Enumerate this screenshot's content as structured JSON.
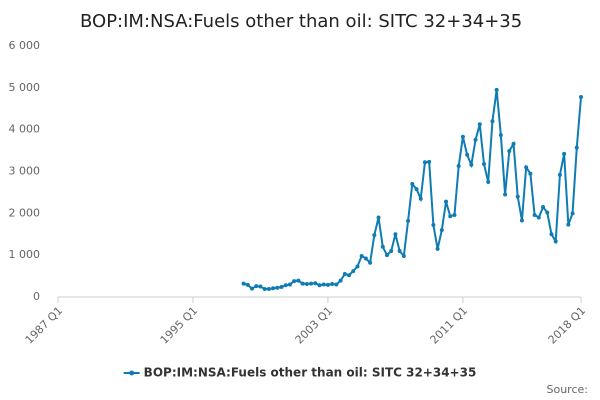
{
  "chart_data": {
    "type": "line",
    "title": "BOP:IM:NSA:Fuels other than oil: SITC 32+34+35",
    "source_label": "Source:",
    "categories": [
      "1987 Q1",
      null,
      null,
      null,
      null,
      null,
      null,
      null,
      null,
      null,
      null,
      null,
      null,
      null,
      null,
      null,
      null,
      null,
      null,
      null,
      null,
      null,
      null,
      null,
      null,
      null,
      null,
      null,
      null,
      null,
      null,
      null,
      "1995 Q1",
      null,
      null,
      null,
      null,
      null,
      null,
      null,
      null,
      null,
      null,
      null,
      null,
      null,
      null,
      null,
      null,
      null,
      null,
      null,
      null,
      null,
      null,
      null,
      null,
      null,
      null,
      null,
      null,
      null,
      null,
      null,
      "2003 Q1",
      null,
      null,
      null,
      null,
      null,
      null,
      null,
      null,
      null,
      null,
      null,
      null,
      null,
      null,
      null,
      null,
      null,
      null,
      null,
      null,
      null,
      null,
      null,
      null,
      null,
      null,
      null,
      null,
      null,
      null,
      null,
      "2011 Q1",
      null,
      null,
      null,
      null,
      null,
      null,
      null,
      null,
      null,
      null,
      null,
      null,
      null,
      null,
      null,
      null,
      null,
      null,
      null,
      null,
      null,
      null,
      null,
      null,
      null,
      null,
      null,
      "2018 Q1"
    ],
    "series": [
      {
        "name": "BOP:IM:NSA:Fuels other than oil: SITC 32+34+35",
        "color": "#0f7cb3",
        "values": [
          null,
          null,
          null,
          null,
          null,
          null,
          null,
          null,
          null,
          null,
          null,
          null,
          null,
          null,
          null,
          null,
          null,
          null,
          null,
          null,
          null,
          null,
          null,
          null,
          null,
          null,
          null,
          null,
          null,
          null,
          null,
          null,
          null,
          null,
          null,
          null,
          null,
          null,
          null,
          null,
          null,
          null,
          null,
          null,
          320,
          290,
          200,
          260,
          250,
          190,
          190,
          210,
          220,
          240,
          280,
          300,
          380,
          390,
          320,
          310,
          320,
          330,
          280,
          300,
          290,
          310,
          300,
          390,
          550,
          520,
          620,
          730,
          980,
          920,
          820,
          1480,
          1900,
          1200,
          1000,
          1100,
          1500,
          1100,
          980,
          1820,
          2700,
          2580,
          2350,
          3220,
          3230,
          1720,
          1150,
          1600,
          2280,
          1930,
          1960,
          3130,
          3830,
          3400,
          3160,
          3760,
          4130,
          3180,
          2750,
          4200,
          4950,
          3870,
          2450,
          3490,
          3660,
          2400,
          1830,
          3100,
          2950,
          1960,
          1900,
          2150,
          2020,
          1500,
          1330,
          2920,
          3420,
          1730,
          2000,
          3570,
          4780
        ]
      }
    ],
    "ylim": [
      0,
      6000
    ],
    "yticks": [
      {
        "value": 0,
        "label": "0"
      },
      {
        "value": 1000,
        "label": "1 000"
      },
      {
        "value": 2000,
        "label": "2 000"
      },
      {
        "value": 3000,
        "label": "3 000"
      },
      {
        "value": 4000,
        "label": "4 000"
      },
      {
        "value": 5000,
        "label": "5 000"
      },
      {
        "value": 6000,
        "label": "6 000"
      }
    ],
    "grid": false
  }
}
